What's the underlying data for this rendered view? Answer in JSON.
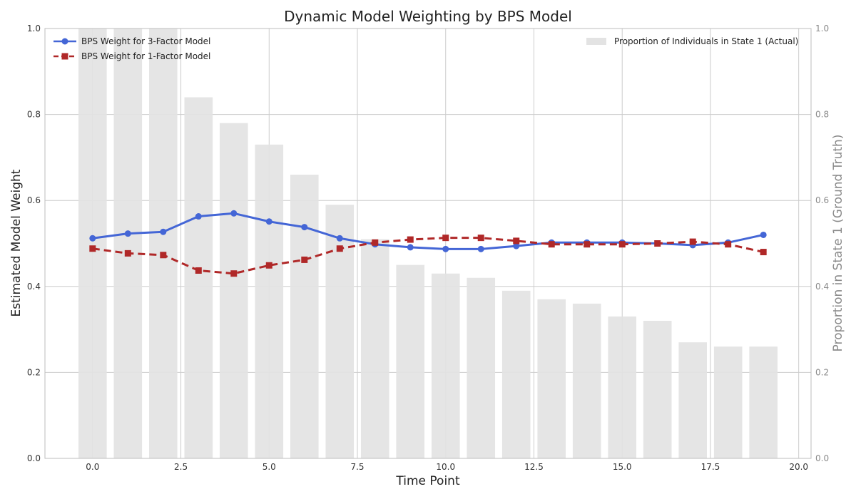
{
  "chart_data": {
    "type": "line",
    "title": "Dynamic Model Weighting by BPS Model",
    "xlabel": "Time Point",
    "ylabel": "Estimated Model Weight",
    "ylabel_right": "Proportion in State 1 (Ground Truth)",
    "xlim": [
      -1.35,
      20.35
    ],
    "ylim": [
      0,
      1
    ],
    "ylim_right": [
      0,
      1
    ],
    "grid": true,
    "x_ticks": [
      "0.0",
      "2.5",
      "5.0",
      "7.5",
      "10.0",
      "12.5",
      "15.0",
      "17.5",
      "20.0"
    ],
    "x_tick_values": [
      0,
      2.5,
      5,
      7.5,
      10,
      12.5,
      15,
      17.5,
      20
    ],
    "y_ticks": [
      "0.0",
      "0.2",
      "0.4",
      "0.6",
      "0.8",
      "1.0"
    ],
    "y_tick_values": [
      0,
      0.2,
      0.4,
      0.6,
      0.8,
      1.0
    ],
    "x": [
      0,
      1,
      2,
      3,
      4,
      5,
      6,
      7,
      8,
      9,
      10,
      11,
      12,
      13,
      14,
      15,
      16,
      17,
      18,
      19
    ],
    "bars": {
      "name": "Proportion of Individuals in State 1 (Actual)",
      "color": "#e3e3e3",
      "axis": "right",
      "values": [
        1.0,
        1.0,
        1.0,
        0.84,
        0.78,
        0.73,
        0.66,
        0.59,
        0.51,
        0.45,
        0.43,
        0.42,
        0.39,
        0.37,
        0.36,
        0.33,
        0.32,
        0.27,
        0.26,
        0.26
      ]
    },
    "series": [
      {
        "name": "BPS Weight for 3-Factor Model",
        "color": "#4466d6",
        "style": "solid",
        "marker": "circle",
        "values": [
          0.512,
          0.523,
          0.527,
          0.563,
          0.57,
          0.551,
          0.538,
          0.512,
          0.498,
          0.491,
          0.487,
          0.487,
          0.494,
          0.502,
          0.502,
          0.502,
          0.5,
          0.496,
          0.502,
          0.52
        ]
      },
      {
        "name": "BPS Weight for 1-Factor Model",
        "color": "#b02828",
        "style": "dashed",
        "marker": "square",
        "values": [
          0.488,
          0.477,
          0.473,
          0.437,
          0.43,
          0.449,
          0.462,
          0.488,
          0.502,
          0.509,
          0.513,
          0.513,
          0.506,
          0.498,
          0.498,
          0.498,
          0.5,
          0.504,
          0.498,
          0.48
        ]
      }
    ],
    "legend_left": "top-left",
    "legend_right": "top-right"
  }
}
